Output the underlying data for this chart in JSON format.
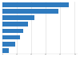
{
  "values": [
    46.0,
    38.5,
    22.0,
    17.5,
    14.5,
    12.0,
    9.0,
    4.5
  ],
  "bar_color": "#2f7bbf",
  "background_color": "#ffffff",
  "grid_color": "#d9d9d9",
  "xlim": [
    0,
    52
  ],
  "bar_height": 0.72,
  "num_bars": 8,
  "xtick_interval": 10
}
